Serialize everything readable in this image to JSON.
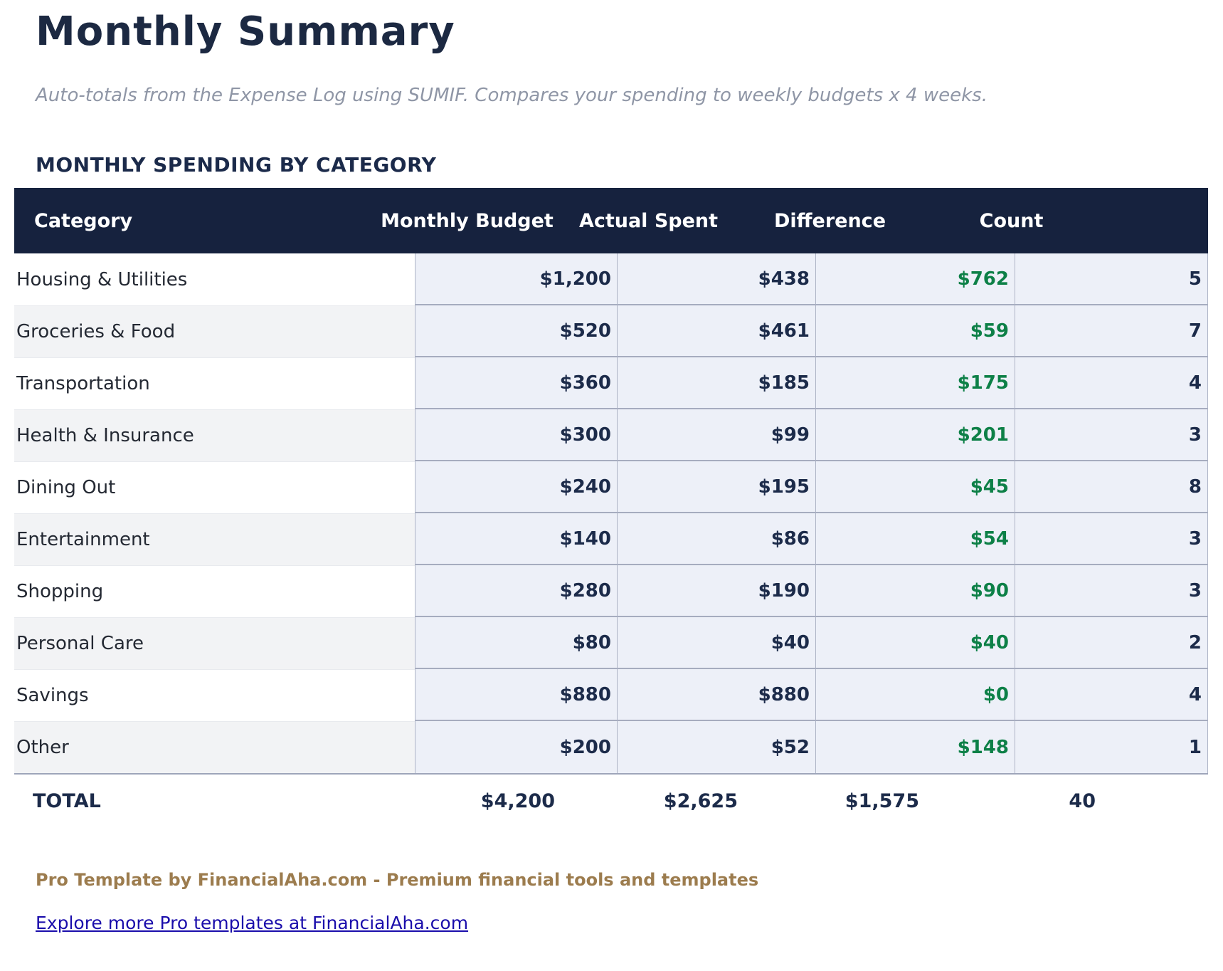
{
  "page": {
    "title": "Monthly Summary",
    "subtitle": "Auto-totals from the Expense Log using SUMIF. Compares your spending to weekly budgets x 4 weeks."
  },
  "table": {
    "section_title": "MONTHLY SPENDING BY CATEGORY",
    "columns": [
      "Category",
      "Monthly Budget",
      "Actual Spent",
      "Difference",
      "Count"
    ],
    "rows": [
      {
        "category": "Housing & Utilities",
        "budget": "$1,200",
        "spent": "$438",
        "difference": "$762",
        "count": "5"
      },
      {
        "category": "Groceries & Food",
        "budget": "$520",
        "spent": "$461",
        "difference": "$59",
        "count": "7"
      },
      {
        "category": "Transportation",
        "budget": "$360",
        "spent": "$185",
        "difference": "$175",
        "count": "4"
      },
      {
        "category": "Health & Insurance",
        "budget": "$300",
        "spent": "$99",
        "difference": "$201",
        "count": "3"
      },
      {
        "category": "Dining Out",
        "budget": "$240",
        "spent": "$195",
        "difference": "$45",
        "count": "8"
      },
      {
        "category": "Entertainment",
        "budget": "$140",
        "spent": "$86",
        "difference": "$54",
        "count": "3"
      },
      {
        "category": "Shopping",
        "budget": "$280",
        "spent": "$190",
        "difference": "$90",
        "count": "3"
      },
      {
        "category": "Personal Care",
        "budget": "$80",
        "spent": "$40",
        "difference": "$40",
        "count": "2"
      },
      {
        "category": "Savings",
        "budget": "$880",
        "spent": "$880",
        "difference": "$0",
        "count": "4"
      },
      {
        "category": "Other",
        "budget": "$200",
        "spent": "$52",
        "difference": "$148",
        "count": "1"
      }
    ],
    "total": {
      "label": "TOTAL",
      "budget": "$4,200",
      "spent": "$2,625",
      "difference": "$1,575",
      "count": "40"
    }
  },
  "chart_data": {
    "type": "table",
    "title": "MONTHLY SPENDING BY CATEGORY",
    "categories": [
      "Housing & Utilities",
      "Groceries & Food",
      "Transportation",
      "Health & Insurance",
      "Dining Out",
      "Entertainment",
      "Shopping",
      "Personal Care",
      "Savings",
      "Other"
    ],
    "series": [
      {
        "name": "Monthly Budget",
        "values": [
          1200,
          520,
          360,
          300,
          240,
          140,
          280,
          80,
          880,
          200
        ]
      },
      {
        "name": "Actual Spent",
        "values": [
          438,
          461,
          185,
          99,
          195,
          86,
          190,
          40,
          880,
          52
        ]
      },
      {
        "name": "Difference",
        "values": [
          762,
          59,
          175,
          201,
          45,
          54,
          90,
          40,
          0,
          148
        ]
      },
      {
        "name": "Count",
        "values": [
          5,
          7,
          4,
          3,
          8,
          3,
          3,
          2,
          4,
          1
        ]
      }
    ],
    "totals": {
      "Monthly Budget": 4200,
      "Actual Spent": 2625,
      "Difference": 1575,
      "Count": 40
    }
  },
  "footer": {
    "branding": "Pro Template by FinancialAha.com - Premium financial tools and templates",
    "link_text": "Explore more Pro templates at FinancialAha.com"
  },
  "colors": {
    "header_bg": "#16223e",
    "navy_text": "#1c2b4a",
    "difference_green": "#0d8047",
    "cell_bg": "#edf0f8",
    "cell_border": "#aeb4c6",
    "row_stripe": "#f2f3f5",
    "branding_gold": "#9c7c4e",
    "link_blue": "#1a0dab"
  }
}
